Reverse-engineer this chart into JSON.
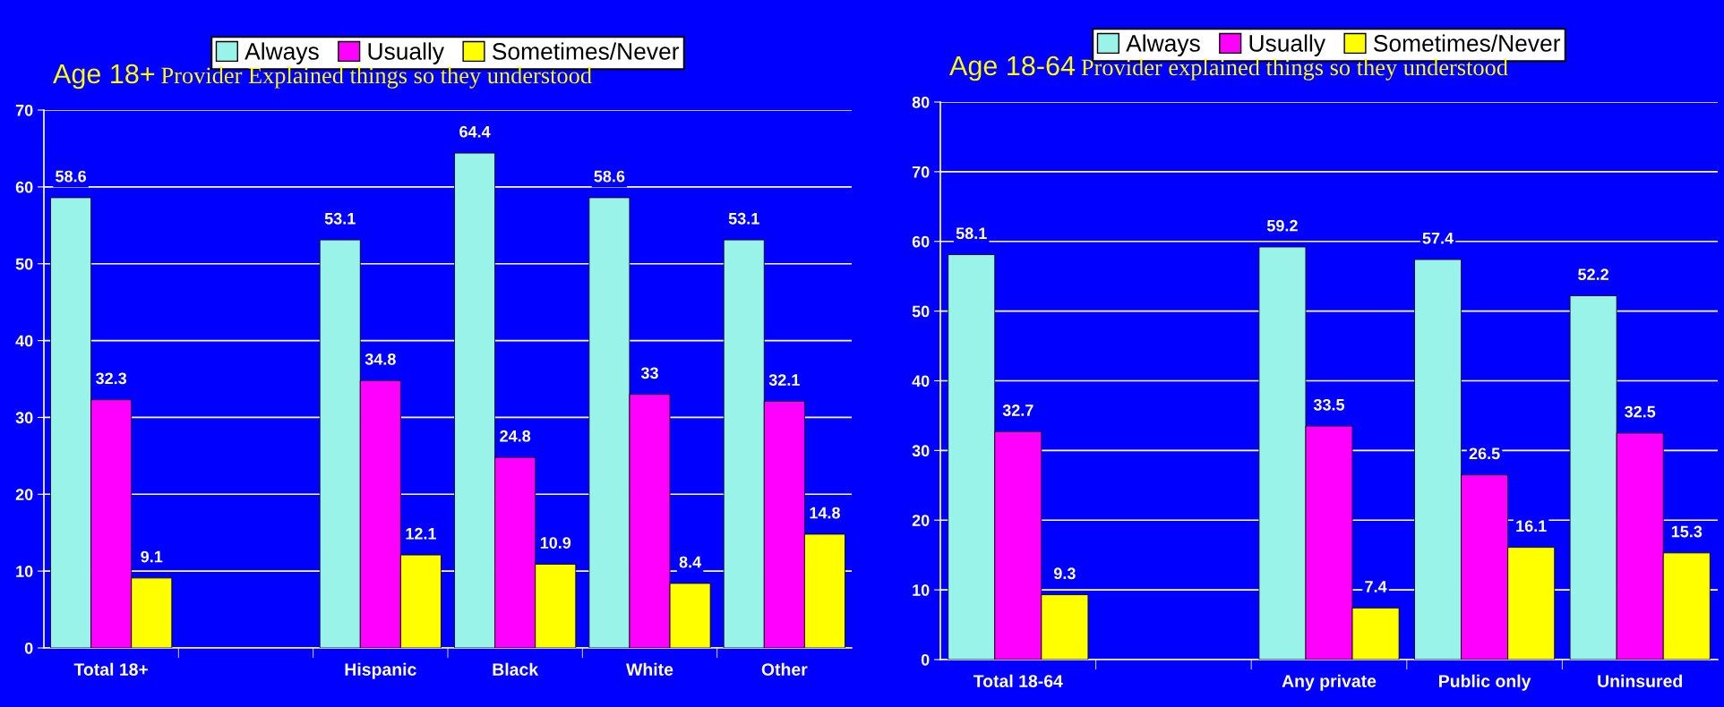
{
  "chart_data": [
    {
      "type": "bar",
      "title": "Age 18+",
      "subtitle": "Provider Explained things so they understood",
      "categories": [
        "Total 18+",
        null,
        "Hispanic",
        "Black",
        "White",
        "Other"
      ],
      "series": [
        {
          "name": "Always",
          "color": "#99f3e8",
          "values": [
            58.6,
            null,
            53.1,
            64.4,
            58.6,
            53.1
          ]
        },
        {
          "name": "Usually",
          "color": "#ff00ff",
          "values": [
            32.3,
            null,
            34.8,
            24.8,
            33,
            32.1
          ]
        },
        {
          "name": "Sometimes/Never",
          "color": "#ffff00",
          "values": [
            9.1,
            null,
            12.1,
            10.9,
            8.4,
            14.8
          ]
        }
      ],
      "ylim": [
        0,
        70
      ],
      "yticks": [
        0,
        10,
        20,
        30,
        40,
        50,
        60,
        70
      ],
      "grid": "y",
      "legend": "top",
      "data_labels": true
    },
    {
      "type": "bar",
      "title": "Age 18-64",
      "subtitle": "Provider explained things so they understood",
      "categories": [
        "Total 18-64",
        null,
        "Any private",
        "Public only",
        "Uninsured"
      ],
      "series": [
        {
          "name": "Always",
          "color": "#99f3e8",
          "values": [
            58.1,
            null,
            59.2,
            57.4,
            52.2
          ]
        },
        {
          "name": "Usually",
          "color": "#ff00ff",
          "values": [
            32.7,
            null,
            33.5,
            26.5,
            32.5
          ]
        },
        {
          "name": "Sometimes/Never",
          "color": "#ffff00",
          "values": [
            9.3,
            null,
            7.4,
            16.1,
            15.3
          ]
        }
      ],
      "ylim": [
        0,
        80
      ],
      "yticks": [
        0,
        10,
        20,
        30,
        40,
        50,
        60,
        70,
        80
      ],
      "grid": "y",
      "legend": "top",
      "data_labels": true
    }
  ]
}
